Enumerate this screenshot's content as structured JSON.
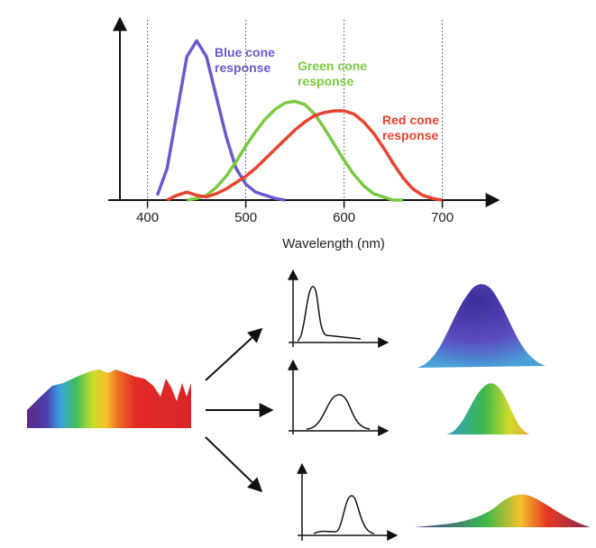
{
  "chart_data": {
    "type": "line",
    "xlabel": "Wavelength (nm)",
    "x": [
      400,
      410,
      420,
      430,
      440,
      450,
      460,
      470,
      480,
      490,
      500,
      510,
      520,
      530,
      540,
      550,
      560,
      570,
      580,
      590,
      600,
      610,
      620,
      630,
      640,
      650,
      660,
      670,
      680,
      690,
      700
    ],
    "series": [
      {
        "name": "Blue cone response",
        "color": "#6a5acd",
        "values": [
          null,
          0.03,
          0.2,
          0.55,
          0.9,
          1.0,
          0.9,
          0.65,
          0.4,
          0.2,
          0.1,
          0.05,
          0.03,
          0.01,
          0.0,
          null,
          null,
          null,
          null,
          null,
          null,
          null,
          null,
          null,
          null,
          null,
          null,
          null,
          null,
          null,
          null
        ]
      },
      {
        "name": "Green cone response",
        "color": "#7ac943",
        "values": [
          null,
          null,
          null,
          null,
          0.0,
          0.01,
          0.03,
          0.08,
          0.15,
          0.24,
          0.34,
          0.43,
          0.51,
          0.57,
          0.61,
          0.62,
          0.6,
          0.54,
          0.45,
          0.35,
          0.25,
          0.16,
          0.09,
          0.04,
          0.02,
          0.0,
          0.0,
          null,
          null,
          null,
          null
        ]
      },
      {
        "name": "Red cone response",
        "color": "#e8432e",
        "values": [
          null,
          null,
          0.0,
          0.03,
          0.05,
          0.03,
          0.02,
          0.04,
          0.07,
          0.11,
          0.15,
          0.2,
          0.26,
          0.32,
          0.38,
          0.44,
          0.49,
          0.53,
          0.55,
          0.56,
          0.56,
          0.54,
          0.49,
          0.42,
          0.33,
          0.23,
          0.14,
          0.07,
          0.03,
          0.01,
          0.0
        ]
      }
    ],
    "xlim": [
      360,
      760
    ],
    "xticks": [
      400,
      500,
      600,
      700
    ],
    "ylim": [
      0,
      1.12
    ],
    "grid": true
  }
}
